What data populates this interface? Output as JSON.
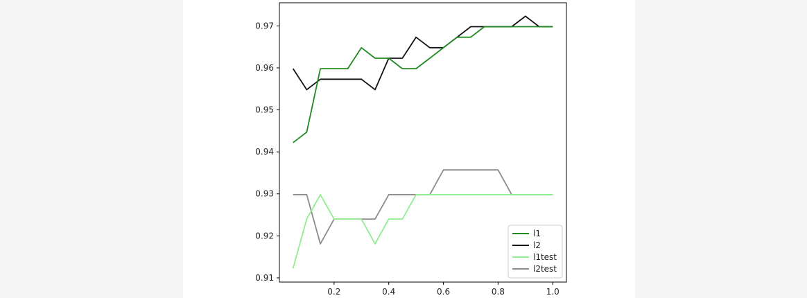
{
  "chart_data": {
    "type": "line",
    "title": "",
    "xlabel": "",
    "ylabel": "",
    "xlim": [
      0.0,
      1.05
    ],
    "ylim": [
      0.909,
      0.9755
    ],
    "xticks": [
      "0.2",
      "0.4",
      "0.6",
      "0.8",
      "1.0"
    ],
    "yticks": [
      "0.91",
      "0.92",
      "0.93",
      "0.94",
      "0.95",
      "0.96",
      "0.97"
    ],
    "grid": false,
    "legend_position": "lower-right",
    "x": [
      0.05,
      0.1,
      0.15,
      0.2,
      0.25,
      0.3,
      0.35,
      0.4,
      0.45,
      0.5,
      0.55,
      0.6,
      0.65,
      0.7,
      0.75,
      0.8,
      0.85,
      0.9,
      0.95,
      1.0
    ],
    "series": [
      {
        "name": "l1",
        "color": "#1f8a1f",
        "values": [
          0.9422,
          0.9447,
          0.9598,
          0.9598,
          0.9598,
          0.9648,
          0.9623,
          0.9623,
          0.9598,
          0.9598,
          0.9623,
          0.9648,
          0.9673,
          0.9673,
          0.9698,
          0.9698,
          0.9698,
          0.9698,
          0.9698,
          0.9698
        ]
      },
      {
        "name": "l2",
        "color": "#111111",
        "values": [
          0.9598,
          0.9548,
          0.9573,
          0.9573,
          0.9573,
          0.9573,
          0.9548,
          0.9623,
          0.9623,
          0.9673,
          0.9648,
          0.9648,
          0.9673,
          0.9698,
          0.9698,
          0.9698,
          0.9698,
          0.9723,
          0.9698,
          0.9698
        ]
      },
      {
        "name": "l1test",
        "color": "#90ee90",
        "values": [
          0.9123,
          0.924,
          0.9298,
          0.924,
          0.924,
          0.924,
          0.9181,
          0.924,
          0.924,
          0.9298,
          0.9298,
          0.9298,
          0.9298,
          0.9298,
          0.9298,
          0.9298,
          0.9298,
          0.9298,
          0.9298,
          0.9298
        ]
      },
      {
        "name": "l2test",
        "color": "#8c8c8c",
        "values": [
          0.9298,
          0.9298,
          0.9181,
          0.924,
          0.924,
          0.924,
          0.924,
          0.9298,
          0.9298,
          0.9298,
          0.9298,
          0.9357,
          0.9357,
          0.9357,
          0.9357,
          0.9357,
          0.9298,
          0.9298,
          0.9298,
          0.9298
        ]
      }
    ]
  }
}
